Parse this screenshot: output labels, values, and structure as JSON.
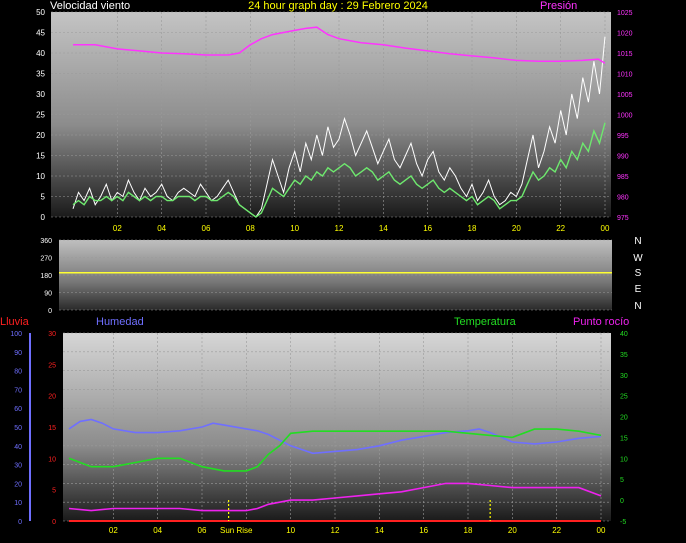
{
  "header": {
    "title": "24 hour graph day : 29 Febrero 2024"
  },
  "colors": {
    "wind_label": "#ffffff",
    "title": "#ffff00",
    "pressure": "#ff33ff",
    "direction_line": "#ffff33",
    "rain": "#ff2020",
    "humidity": "#6f6fff",
    "temperature": "#22dd22",
    "dewpoint": "#ee22ee",
    "ticks_yellow": "#ffff00",
    "panel_grid": "#8a8a8a"
  },
  "chart_data": [
    {
      "type": "line",
      "title": "24 hour graph day : 29 Febrero 2024",
      "x_ticks": [
        "02",
        "04",
        "06",
        "08",
        "10",
        "12",
        "14",
        "16",
        "18",
        "20",
        "22",
        "00"
      ],
      "left_axis_label": "Velocidad viento",
      "right_axis_label": "Presión",
      "left_ylim": [
        0,
        50
      ],
      "left_ticks": [
        "0",
        "5",
        "10",
        "15",
        "20",
        "25",
        "30",
        "35",
        "40",
        "45",
        "50"
      ],
      "right_ylim": [
        975,
        1025
      ],
      "right_ticks": [
        "975",
        "980",
        "985",
        "990",
        "995",
        "1000",
        "1005",
        "1010",
        "1015",
        "1020",
        "1025"
      ],
      "grid": true,
      "series": [
        {
          "name": "Presión",
          "axis": "right",
          "x": [
            0,
            1,
            2,
            3,
            4,
            5,
            6,
            7,
            7.5,
            8,
            8.5,
            9,
            10,
            10.5,
            11,
            11.5,
            12,
            13,
            14,
            15,
            16,
            17,
            18,
            19,
            20,
            21,
            22,
            23,
            23.7,
            24
          ],
          "values": [
            1017,
            1017,
            1016,
            1015.5,
            1015,
            1014.8,
            1014.5,
            1014.5,
            1015,
            1017,
            1018.5,
            1019.5,
            1020.5,
            1021,
            1021.3,
            1019.5,
            1018.5,
            1017.5,
            1017,
            1016.2,
            1015.5,
            1014.8,
            1014.3,
            1013.8,
            1013.2,
            1013,
            1013,
            1013.2,
            1013.5,
            1012.5
          ]
        },
        {
          "name": "",
          "axis": "left",
          "values": [
            2,
            6,
            4,
            7,
            3,
            5,
            8,
            4,
            6,
            5,
            9,
            6,
            4,
            7,
            5,
            6,
            8,
            5,
            4,
            6,
            7,
            6,
            5,
            8,
            6,
            4,
            5,
            7,
            9,
            6,
            3,
            2,
            1,
            0,
            2,
            8,
            14,
            10,
            6,
            12,
            16,
            11,
            18,
            14,
            20,
            15,
            22,
            17,
            19,
            24,
            20,
            15,
            18,
            21,
            17,
            13,
            16,
            19,
            14,
            12,
            15,
            18,
            13,
            10,
            14,
            16,
            11,
            9,
            12,
            10,
            7,
            5,
            8,
            4,
            6,
            9,
            5,
            3,
            4,
            6,
            5,
            8,
            14,
            20,
            12,
            16,
            22,
            18,
            26,
            20,
            30,
            24,
            34,
            28,
            38,
            30,
            44
          ]
        },
        {
          "name": "",
          "axis": "left",
          "values": [
            3,
            4,
            3,
            5,
            4,
            4,
            5,
            4,
            5,
            4,
            6,
            5,
            4,
            5,
            4,
            5,
            5,
            4,
            4,
            5,
            5,
            5,
            4,
            5,
            5,
            4,
            4,
            5,
            6,
            5,
            3,
            2,
            1,
            0,
            1,
            4,
            7,
            6,
            5,
            7,
            9,
            8,
            10,
            9,
            11,
            10,
            12,
            11,
            12,
            13,
            12,
            10,
            11,
            12,
            11,
            9,
            10,
            11,
            9,
            8,
            9,
            10,
            8,
            7,
            8,
            9,
            7,
            6,
            7,
            6,
            5,
            4,
            5,
            3,
            4,
            5,
            4,
            2,
            3,
            4,
            4,
            5,
            8,
            11,
            9,
            10,
            12,
            11,
            14,
            12,
            16,
            14,
            18,
            16,
            21,
            18,
            23
          ]
        }
      ]
    },
    {
      "type": "line",
      "title": "",
      "x_ticks": [],
      "ylim": [
        0,
        360
      ],
      "y_ticks": [
        "0",
        "90",
        "180",
        "270",
        "360"
      ],
      "right_labels": [
        "N",
        "W",
        "S",
        "E",
        "N"
      ],
      "grid": true,
      "series": [
        {
          "name": "",
          "x": [
            0,
            24
          ],
          "values": [
            192,
            192
          ]
        }
      ]
    },
    {
      "type": "line",
      "title": "",
      "x_ticks": [
        "02",
        "04",
        "06",
        "08",
        "10",
        "12",
        "14",
        "16",
        "18",
        "20",
        "22",
        "00"
      ],
      "axis_labels": {
        "rain": "Lluvia",
        "humidity": "Humedad",
        "temperature": "Temperatura",
        "dewpoint": "Punto rocío"
      },
      "humidity_ylim": [
        0,
        100
      ],
      "humidity_ticks": [
        "0",
        "10",
        "20",
        "30",
        "40",
        "50",
        "60",
        "70",
        "80",
        "90",
        "100"
      ],
      "rain_ylim": [
        0,
        30
      ],
      "rain_ticks": [
        "0",
        "5",
        "10",
        "15",
        "20",
        "25",
        "30"
      ],
      "temp_ylim": [
        -5,
        40
      ],
      "temp_ticks": [
        "-5",
        "0",
        "5",
        "10",
        "15",
        "20",
        "25",
        "30",
        "35",
        "40"
      ],
      "annotations": [
        "Sun Rise"
      ],
      "grid": true,
      "series": [
        {
          "name": "Humedad",
          "axis": "humidity",
          "x": [
            0,
            0.5,
            1,
            1.5,
            2,
            3,
            4,
            5,
            6,
            6.5,
            7,
            8,
            8.5,
            9,
            10,
            11,
            12,
            13,
            14,
            15,
            16,
            17,
            18,
            18.5,
            19,
            20,
            21,
            22,
            23,
            24
          ],
          "values": [
            49,
            53,
            54,
            52,
            49,
            47,
            47,
            48,
            50,
            52,
            51,
            49,
            48,
            46,
            40,
            36,
            37,
            38,
            40,
            43,
            45,
            47,
            48,
            49,
            47,
            42,
            41,
            42,
            44,
            45
          ]
        },
        {
          "name": "Temperatura",
          "axis": "temp",
          "x": [
            0,
            1,
            2,
            3,
            4,
            5,
            6,
            7,
            8,
            8.5,
            9,
            9.5,
            10,
            11,
            12,
            13,
            14,
            15,
            16,
            17,
            18,
            19,
            20,
            21,
            22,
            23,
            24
          ],
          "values": [
            10,
            8,
            8,
            9,
            10,
            10,
            8,
            7,
            7,
            8,
            11,
            13,
            16,
            16.5,
            16.5,
            16.5,
            16.5,
            16.5,
            16.5,
            16.5,
            16,
            15.5,
            15,
            17,
            17,
            16.5,
            15.5
          ]
        },
        {
          "name": "Punto rocío",
          "axis": "temp",
          "x": [
            0,
            1,
            2,
            3,
            4,
            5,
            6,
            7,
            8,
            8.5,
            9,
            10,
            11,
            12,
            13,
            14,
            15,
            16,
            17,
            18,
            19,
            20,
            21,
            22,
            23,
            24
          ],
          "values": [
            -2,
            -2.5,
            -2,
            -2,
            -2,
            -2,
            -2.5,
            -2.5,
            -2.5,
            -2,
            -1,
            0,
            0,
            0.5,
            1,
            1.5,
            2,
            3,
            4,
            4,
            3.5,
            3,
            3,
            3,
            3,
            1
          ]
        },
        {
          "name": "Lluvia",
          "axis": "rain",
          "x": [
            0,
            24
          ],
          "values": [
            0,
            0
          ]
        }
      ]
    }
  ]
}
